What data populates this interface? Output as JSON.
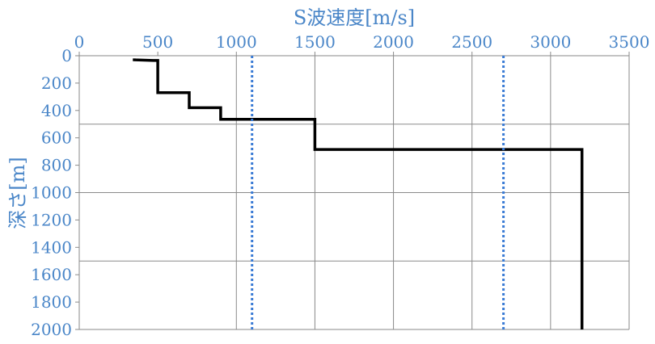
{
  "chart_data": {
    "type": "line",
    "title": "",
    "xlabel": "S波速度[m/s]",
    "ylabel": "深さ[m]",
    "x_axis_position": "top",
    "y_axis_inverted": true,
    "xlim": [
      0,
      3500
    ],
    "ylim": [
      0,
      2000
    ],
    "x_ticks": [
      0,
      500,
      1000,
      1500,
      2000,
      2500,
      3000,
      3500
    ],
    "y_ticks": [
      0,
      200,
      400,
      600,
      800,
      1000,
      1200,
      1400,
      1600,
      1800,
      2000
    ],
    "x_gridlines": [
      1000,
      1500,
      2000,
      2500,
      3000,
      3500
    ],
    "y_gridlines": [
      500,
      1000,
      1500,
      2000
    ],
    "grid": true,
    "series": [
      {
        "color": "#000000",
        "style": "solid",
        "points": [
          [
            350,
            20
          ],
          [
            350,
            30
          ],
          [
            470,
            35
          ],
          [
            500,
            35
          ],
          [
            500,
            270
          ],
          [
            700,
            270
          ],
          [
            700,
            380
          ],
          [
            900,
            380
          ],
          [
            900,
            465
          ],
          [
            1500,
            465
          ],
          [
            1500,
            685
          ],
          [
            3200,
            685
          ],
          [
            3200,
            2000
          ]
        ]
      },
      {
        "color": "#3a7bd5",
        "style": "dotted",
        "points": [
          [
            1100,
            0
          ],
          [
            1100,
            2000
          ]
        ]
      },
      {
        "color": "#3a7bd5",
        "style": "dotted",
        "points": [
          [
            2700,
            0
          ],
          [
            2700,
            2000
          ]
        ]
      }
    ],
    "colors": {
      "axis_text": "#4a86c8",
      "grid": "#8a8a8a",
      "axis_line": "#8a8a8a"
    }
  }
}
